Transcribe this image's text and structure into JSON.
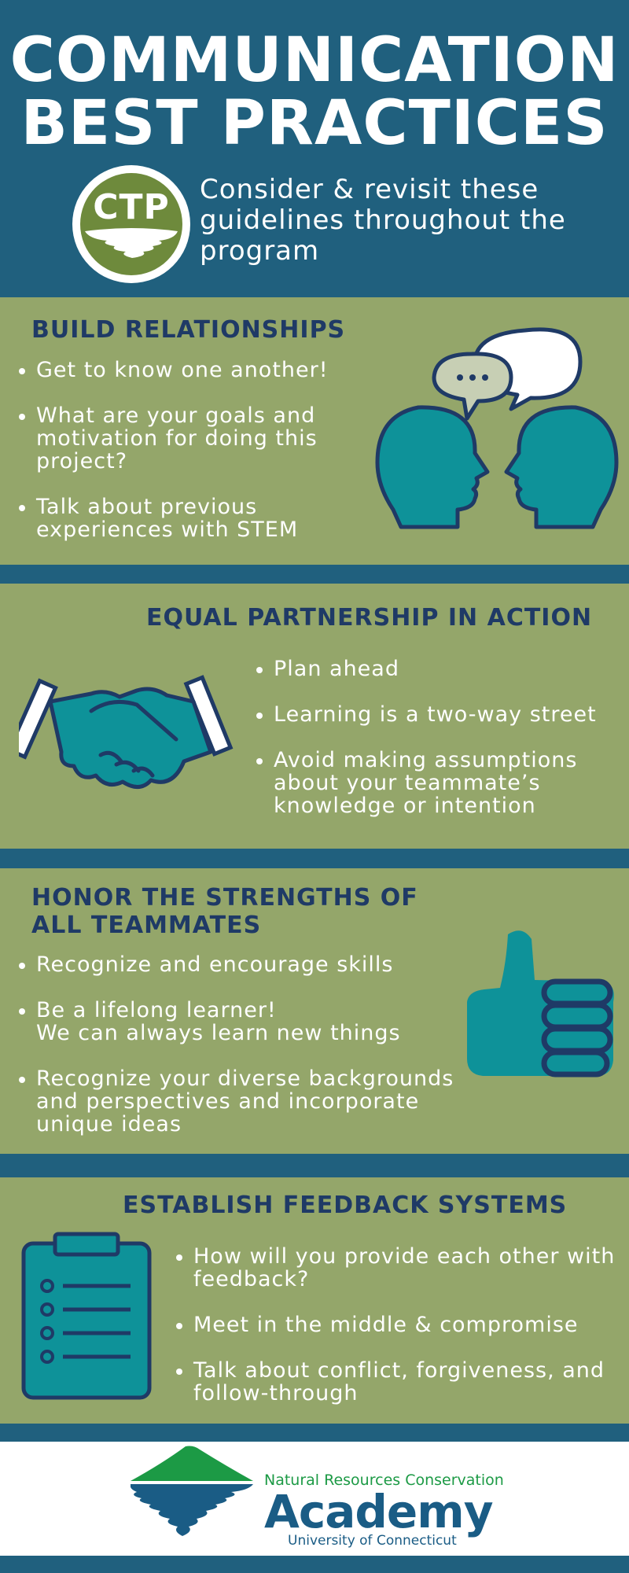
{
  "header": {
    "title_line1": "COMMUNICATION",
    "title_line2": "BEST PRACTICES",
    "badge_text": "CTP",
    "subtitle": "Consider & revisit these guidelines throughout the program"
  },
  "sections": [
    {
      "heading": "BUILD RELATIONSHIPS",
      "bullets": [
        "Get to know one another!",
        "What are your goals and motivation for doing this project?",
        "Talk about previous experiences with STEM"
      ],
      "icon": "talking-heads-icon"
    },
    {
      "heading": "EQUAL PARTNERSHIP IN ACTION",
      "bullets": [
        "Plan ahead",
        "Learning is a two-way street",
        "Avoid making assumptions about your teammate’s knowledge or intention"
      ],
      "icon": "handshake-icon"
    },
    {
      "heading_line1": "HONOR THE STRENGTHS OF",
      "heading_line2": "ALL TEAMMATES",
      "bullets": [
        "Recognize and encourage skills",
        "Be a lifelong learner!",
        "We can always learn new things",
        "Recognize your diverse backgrounds and perspectives and incorporate unique ideas"
      ],
      "icon": "thumbs-up-icon"
    },
    {
      "heading": "ESTABLISH FEEDBACK SYSTEMS",
      "bullets": [
        "How will you provide each other with feedback?",
        "Meet in the middle & compromise",
        "Talk about conflict, forgiveness, and follow-through"
      ],
      "icon": "clipboard-icon"
    }
  ],
  "footer": {
    "org_line": "Natural Resources Conservation",
    "org_name": "Academy",
    "university": "University of Connecticut"
  },
  "colors": {
    "navy_band": "#20607e",
    "olive_section": "#94a66a",
    "heading_navy": "#1f3a66",
    "teal_icon": "#0e9299",
    "badge_green": "#6e8a3c"
  }
}
